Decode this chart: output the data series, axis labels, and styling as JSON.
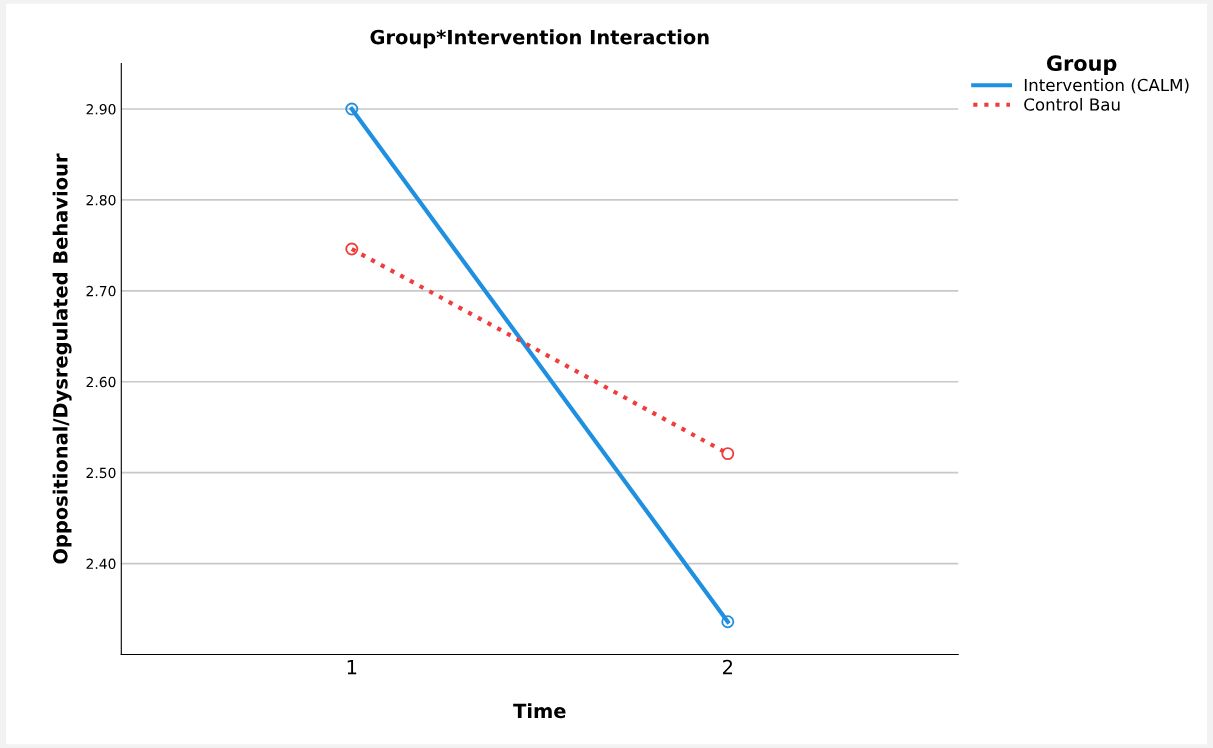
{
  "chart_data": {
    "type": "line",
    "title": "Group*Intervention Interaction",
    "xlabel": "Time",
    "ylabel": "Oppositional/Dysregulated Behaviour",
    "legend_title": "Group",
    "categories": [
      "1",
      "2"
    ],
    "series": [
      {
        "name": "Intervention (CALM)",
        "color": "#1f8fe0",
        "values": [
          2.9,
          2.336
        ],
        "line_style": "solid"
      },
      {
        "name": "Control Bau",
        "color": "#f03c3c",
        "values": [
          2.746,
          2.521
        ],
        "line_style": "dotted"
      }
    ],
    "ylim": [
      2.3,
      2.95
    ],
    "yticks": [
      {
        "value": 2.4,
        "label": "2.40"
      },
      {
        "value": 2.5,
        "label": "2.50"
      },
      {
        "value": 2.6,
        "label": "2.60"
      },
      {
        "value": 2.7,
        "label": "2.70"
      },
      {
        "value": 2.8,
        "label": "2.80"
      },
      {
        "value": 2.9,
        "label": "2.90"
      }
    ],
    "grid": "y",
    "legend": "top right",
    "marker": "circle"
  }
}
